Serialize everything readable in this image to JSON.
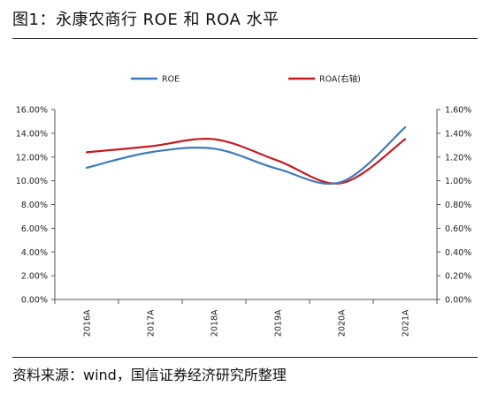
{
  "title": "图1：永康农商行 ROE 和 ROA 水平",
  "source": "资料来源：wind，国信证券经济研究所整理",
  "chart_data": {
    "type": "line",
    "categories": [
      "2016A",
      "2017A",
      "2018A",
      "2019A",
      "2020A",
      "2021A"
    ],
    "series": [
      {
        "name": "ROE",
        "axis": "left",
        "color": "#3e7bbd",
        "values": [
          11.1,
          12.4,
          12.7,
          11.0,
          9.9,
          14.5
        ]
      },
      {
        "name": "ROA(右轴)",
        "axis": "right",
        "color": "#c8191f",
        "values": [
          1.24,
          1.29,
          1.35,
          1.17,
          0.98,
          1.35
        ]
      }
    ],
    "left_axis": {
      "ylim": [
        0,
        16
      ],
      "ticks": [
        "0.00%",
        "2.00%",
        "4.00%",
        "6.00%",
        "8.00%",
        "10.00%",
        "12.00%",
        "14.00%",
        "16.00%"
      ]
    },
    "right_axis": {
      "ylim": [
        0,
        1.6
      ],
      "ticks": [
        "0.00%",
        "0.20%",
        "0.40%",
        "0.60%",
        "0.80%",
        "1.00%",
        "1.20%",
        "1.40%",
        "1.60%"
      ]
    },
    "legend_position": "top",
    "grid": false
  }
}
